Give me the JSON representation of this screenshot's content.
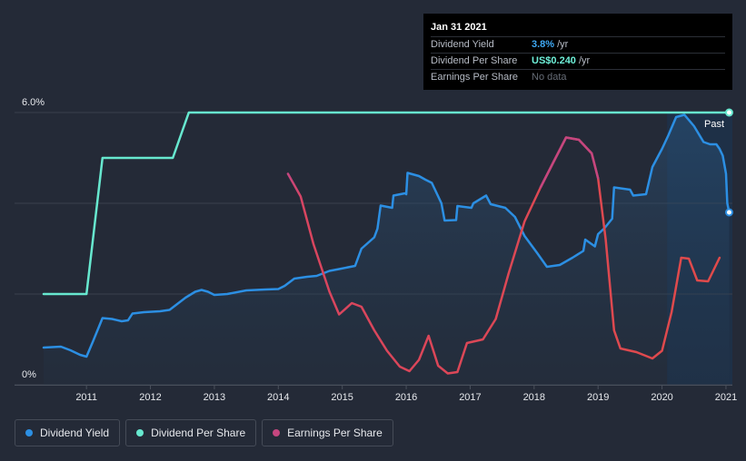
{
  "tooltip": {
    "date": "Jan 31 2021",
    "rows": [
      {
        "label": "Dividend Yield",
        "value": "3.8%",
        "unit": "/yr"
      },
      {
        "label": "Dividend Per Share",
        "value": "US$0.240",
        "unit": "/yr"
      },
      {
        "label": "Earnings Per Share",
        "value": "No data",
        "unit": ""
      }
    ]
  },
  "legend": [
    {
      "label": "Dividend Yield",
      "color": "#2c8fe3"
    },
    {
      "label": "Dividend Per Share",
      "color": "#67e8cf"
    },
    {
      "label": "Earnings Per Share",
      "color": "#c5467f"
    }
  ],
  "chart_data": {
    "type": "line",
    "title": "",
    "xlabel": "",
    "ylabel": "",
    "ylim": [
      0,
      6.0
    ],
    "y_ticks": [
      "6.0%",
      "0%"
    ],
    "x_ticks": [
      "2011",
      "2012",
      "2013",
      "2014",
      "2015",
      "2016",
      "2017",
      "2018",
      "2019",
      "2020",
      "2021"
    ],
    "xlim": [
      2010.33,
      2021.1
    ],
    "past_label": "Past",
    "past_region_start": 2020.08,
    "grid": true,
    "series": [
      {
        "name": "Dividend Yield",
        "color": "#2c8fe3",
        "area": true,
        "points": [
          [
            2010.33,
            0.82
          ],
          [
            2010.6,
            0.84
          ],
          [
            2010.75,
            0.76
          ],
          [
            2010.9,
            0.66
          ],
          [
            2011.0,
            0.62
          ],
          [
            2011.1,
            0.95
          ],
          [
            2011.25,
            1.47
          ],
          [
            2011.4,
            1.45
          ],
          [
            2011.55,
            1.4
          ],
          [
            2011.65,
            1.42
          ],
          [
            2011.72,
            1.57
          ],
          [
            2011.9,
            1.6
          ],
          [
            2012.15,
            1.62
          ],
          [
            2012.3,
            1.65
          ],
          [
            2012.55,
            1.92
          ],
          [
            2012.7,
            2.05
          ],
          [
            2012.8,
            2.09
          ],
          [
            2012.9,
            2.05
          ],
          [
            2013.0,
            1.98
          ],
          [
            2013.2,
            2.0
          ],
          [
            2013.5,
            2.08
          ],
          [
            2013.8,
            2.1
          ],
          [
            2014.0,
            2.11
          ],
          [
            2014.1,
            2.18
          ],
          [
            2014.25,
            2.34
          ],
          [
            2014.45,
            2.38
          ],
          [
            2014.6,
            2.4
          ],
          [
            2014.8,
            2.51
          ],
          [
            2014.95,
            2.55
          ],
          [
            2015.2,
            2.62
          ],
          [
            2015.3,
            3.0
          ],
          [
            2015.5,
            3.25
          ],
          [
            2015.55,
            3.44
          ],
          [
            2015.6,
            3.95
          ],
          [
            2015.78,
            3.9
          ],
          [
            2015.8,
            4.17
          ],
          [
            2015.98,
            4.22
          ],
          [
            2016.0,
            4.2
          ],
          [
            2016.02,
            4.67
          ],
          [
            2016.2,
            4.6
          ],
          [
            2016.3,
            4.52
          ],
          [
            2016.4,
            4.45
          ],
          [
            2016.55,
            4.0
          ],
          [
            2016.6,
            3.62
          ],
          [
            2016.78,
            3.63
          ],
          [
            2016.8,
            3.94
          ],
          [
            2017.02,
            3.9
          ],
          [
            2017.05,
            4.0
          ],
          [
            2017.25,
            4.17
          ],
          [
            2017.32,
            3.98
          ],
          [
            2017.55,
            3.9
          ],
          [
            2017.7,
            3.7
          ],
          [
            2017.85,
            3.28
          ],
          [
            2018.05,
            2.9
          ],
          [
            2018.2,
            2.6
          ],
          [
            2018.4,
            2.64
          ],
          [
            2018.6,
            2.8
          ],
          [
            2018.77,
            2.95
          ],
          [
            2018.8,
            3.2
          ],
          [
            2018.95,
            3.05
          ],
          [
            2019.0,
            3.32
          ],
          [
            2019.1,
            3.45
          ],
          [
            2019.22,
            3.66
          ],
          [
            2019.25,
            4.35
          ],
          [
            2019.5,
            4.3
          ],
          [
            2019.55,
            4.17
          ],
          [
            2019.75,
            4.2
          ],
          [
            2019.85,
            4.8
          ],
          [
            2020.0,
            5.2
          ],
          [
            2020.1,
            5.5
          ],
          [
            2020.22,
            5.9
          ],
          [
            2020.35,
            5.95
          ],
          [
            2020.5,
            5.7
          ],
          [
            2020.65,
            5.35
          ],
          [
            2020.75,
            5.3
          ],
          [
            2020.85,
            5.3
          ],
          [
            2020.9,
            5.2
          ],
          [
            2020.95,
            5.05
          ],
          [
            2021.0,
            4.65
          ],
          [
            2021.02,
            4.0
          ],
          [
            2021.05,
            3.8
          ]
        ]
      },
      {
        "name": "Dividend Per Share",
        "color": "#67e8cf",
        "area": false,
        "points": [
          [
            2010.33,
            2.0
          ],
          [
            2011.0,
            2.0
          ],
          [
            2011.25,
            5.0
          ],
          [
            2012.35,
            5.0
          ],
          [
            2012.6,
            6.0
          ],
          [
            2021.05,
            6.0
          ]
        ]
      },
      {
        "name": "Earnings Per Share",
        "color": "#e04a4a",
        "color_start": "#c5467f",
        "color_peak": "#c5467f",
        "area": false,
        "points": [
          [
            2014.15,
            4.65
          ],
          [
            2014.35,
            4.15
          ],
          [
            2014.55,
            3.1
          ],
          [
            2014.8,
            2.05
          ],
          [
            2014.95,
            1.55
          ],
          [
            2015.15,
            1.8
          ],
          [
            2015.3,
            1.72
          ],
          [
            2015.5,
            1.2
          ],
          [
            2015.7,
            0.75
          ],
          [
            2015.9,
            0.4
          ],
          [
            2016.05,
            0.3
          ],
          [
            2016.2,
            0.55
          ],
          [
            2016.35,
            1.08
          ],
          [
            2016.5,
            0.42
          ],
          [
            2016.65,
            0.25
          ],
          [
            2016.8,
            0.28
          ],
          [
            2016.95,
            0.92
          ],
          [
            2017.2,
            1.0
          ],
          [
            2017.4,
            1.45
          ],
          [
            2017.6,
            2.45
          ],
          [
            2017.85,
            3.6
          ],
          [
            2018.1,
            4.35
          ],
          [
            2018.3,
            4.9
          ],
          [
            2018.5,
            5.45
          ],
          [
            2018.7,
            5.4
          ],
          [
            2018.9,
            5.1
          ],
          [
            2019.0,
            4.55
          ],
          [
            2019.12,
            3.2
          ],
          [
            2019.25,
            1.2
          ],
          [
            2019.35,
            0.8
          ],
          [
            2019.6,
            0.72
          ],
          [
            2019.85,
            0.58
          ],
          [
            2020.0,
            0.75
          ],
          [
            2020.15,
            1.6
          ],
          [
            2020.3,
            2.8
          ],
          [
            2020.42,
            2.78
          ],
          [
            2020.55,
            2.3
          ],
          [
            2020.72,
            2.28
          ],
          [
            2020.9,
            2.8
          ]
        ]
      }
    ]
  }
}
